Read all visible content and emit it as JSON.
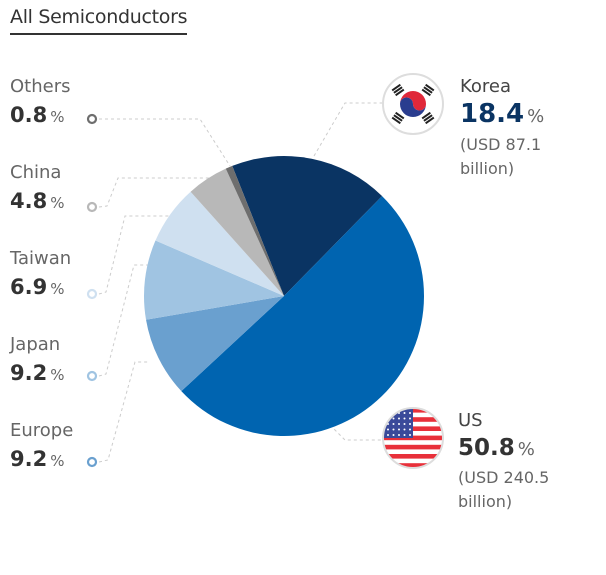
{
  "title": "All Semiconductors",
  "chart_data": {
    "type": "pie",
    "title": "All Semiconductors",
    "unit": "%",
    "slices": [
      {
        "label": "Korea",
        "value": 18.4,
        "color": "#0a3463",
        "usd": "(USD 87.1 billion)",
        "icon": "korea-flag-icon"
      },
      {
        "label": "US",
        "value": 50.8,
        "color": "#0064b0",
        "usd": "(USD 240.5 billion)",
        "icon": "us-flag-icon"
      },
      {
        "label": "Europe",
        "value": 9.2,
        "color": "#6aa0cf"
      },
      {
        "label": "Japan",
        "value": 9.2,
        "color": "#a0c4e2"
      },
      {
        "label": "Taiwan",
        "value": 6.9,
        "color": "#cfe0f0"
      },
      {
        "label": "China",
        "value": 4.8,
        "color": "#b8b8b8"
      },
      {
        "label": "Others",
        "value": 0.8,
        "color": "#6e6e6e"
      }
    ]
  }
}
